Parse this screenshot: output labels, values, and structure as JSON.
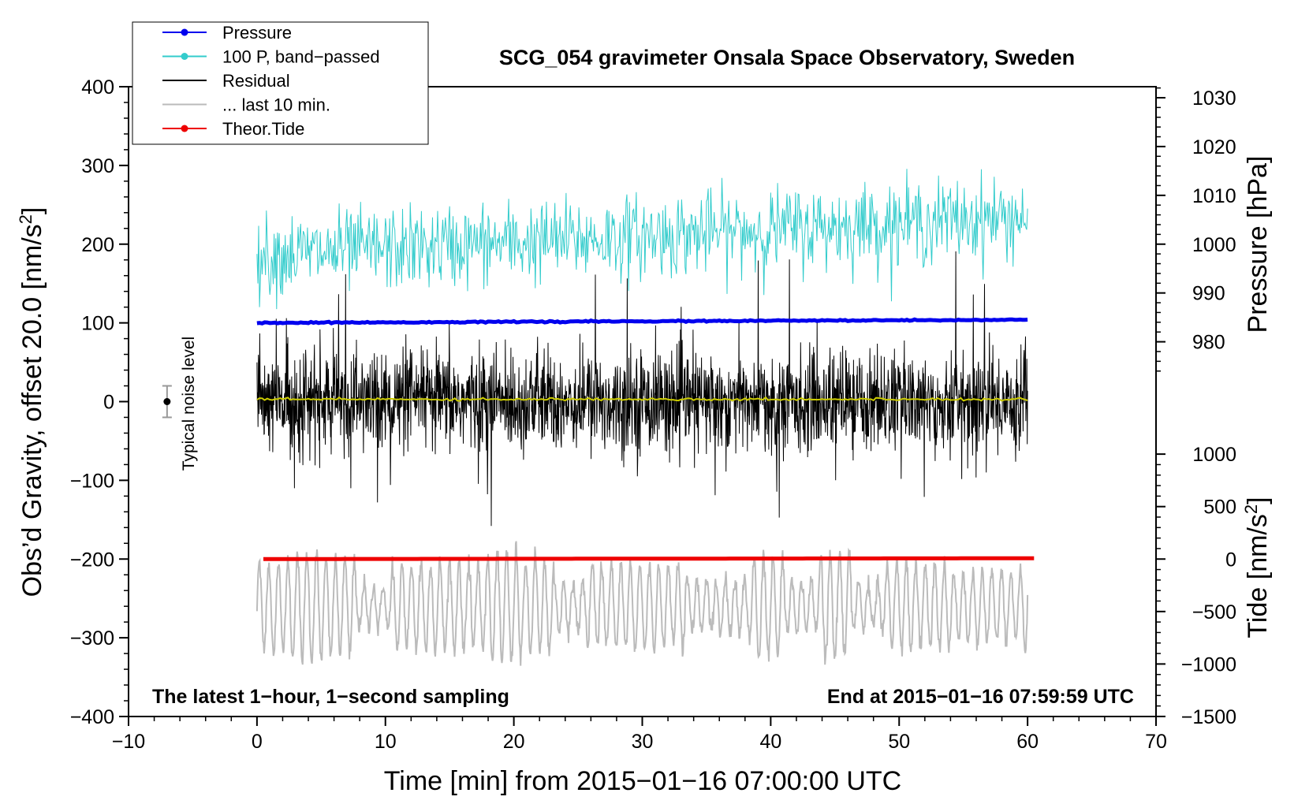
{
  "chart_data": {
    "type": "line",
    "title": "SCG_054 gravimeter Onsala Space Observatory, Sweden",
    "xlabel": "Time [min] from 2015−01−16 07:00:00 UTC",
    "ylabel_left": "Obs’d Gravity, offset 20.0 [nm/s",
    "ylabel_left_sup": "2",
    "ylabel_left_end": "]",
    "ylabel_right_pressure": "Pressure [hPa]",
    "ylabel_right_tide": "Tide [nm/s",
    "ylabel_right_tide_sup": "2",
    "ylabel_right_tide_end": "]",
    "xlim": [
      -10,
      70
    ],
    "ylim_left": [
      -400,
      400
    ],
    "x_ticks": [
      -10,
      0,
      10,
      20,
      30,
      40,
      50,
      60,
      70
    ],
    "x_tick_labels": [
      "−10",
      "0",
      "10",
      "20",
      "30",
      "40",
      "50",
      "60",
      "70"
    ],
    "y_left_ticks": [
      400,
      300,
      200,
      100,
      0,
      -100,
      -200,
      -300,
      -400
    ],
    "y_left_tick_labels": [
      "400",
      "300",
      "200",
      "100",
      "0",
      "−100",
      "−200",
      "−300",
      "−400"
    ],
    "pressure_axis": {
      "ticks": [
        1030,
        1020,
        1010,
        1000,
        990,
        980
      ],
      "labels": [
        "1030",
        "1020",
        "1010",
        "1000",
        "990",
        "980"
      ],
      "ref_value": 1000,
      "ref_left": 200,
      "scale_left_per_hpa": 6.2
    },
    "tide_axis": {
      "ticks": [
        1000,
        500,
        0,
        -500,
        -1000,
        -1500
      ],
      "labels": [
        "1000",
        "500",
        "0",
        "−500",
        "−1000",
        "−1500"
      ],
      "ref_value": 0,
      "ref_left": -200,
      "scale_left_per_unit": 0.1333
    },
    "series": [
      {
        "name": "Pressure",
        "color": "#0000ee",
        "kind": "line-dots",
        "x_range": [
          0,
          60
        ],
        "level_start": 100,
        "level_end": 104
      },
      {
        "name": "100 P, band−passed",
        "color": "#33cccc",
        "kind": "noisy",
        "x_range": [
          0,
          60
        ],
        "mean_start": 185,
        "mean_end": 235,
        "amplitude": 35
      },
      {
        "name": "Residual",
        "color": "#000000",
        "kind": "noisy",
        "x_range": [
          0,
          60
        ],
        "mean": 0,
        "amplitude": 45
      },
      {
        "name": "... last 10 min.",
        "color": "#bbbbbb",
        "kind": "oscillation",
        "x_range": [
          0,
          60
        ],
        "mean": -260,
        "amplitude": 55
      },
      {
        "name": "Theor.Tide",
        "color": "#ee0000",
        "kind": "line-dots",
        "x_range": [
          0.5,
          60.5
        ],
        "level_start": -200,
        "level_end": -199
      },
      {
        "name": "Residual mean",
        "color": "#cccc00",
        "kind": "line",
        "x_range": [
          0,
          60
        ],
        "level": 3
      }
    ],
    "legend": [
      {
        "label": "Pressure",
        "color": "#0000ee",
        "marker": true
      },
      {
        "label": "100 P, band−passed",
        "color": "#33cccc",
        "marker": true
      },
      {
        "label": "Residual",
        "color": "#000000",
        "marker": false
      },
      {
        "label": "... last 10 min.",
        "color": "#bbbbbb",
        "marker": false
      },
      {
        "label": "Theor.Tide",
        "color": "#ee0000",
        "marker": true
      }
    ],
    "noise_level": {
      "label": "Typical noise level",
      "x": -7,
      "y": 0,
      "err": 20
    },
    "annotations": {
      "bottom_left": "The latest 1−hour, 1−second sampling",
      "bottom_right": "End at 2015−01−16 07:59:59 UTC"
    }
  }
}
